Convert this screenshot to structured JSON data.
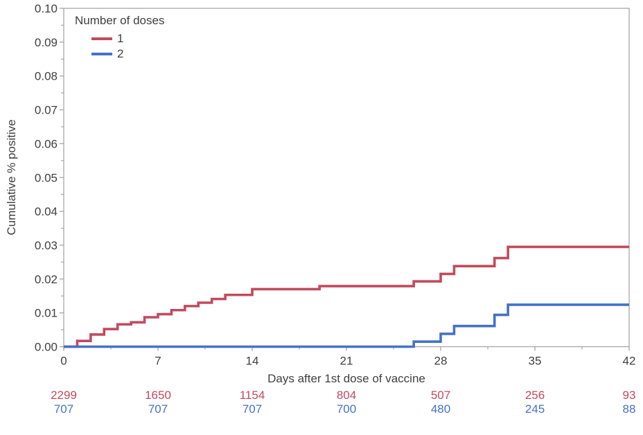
{
  "figure": {
    "background": "#ffffff",
    "text_color": "#3f3f3f",
    "axis_color": "#a6a6a6"
  },
  "chart_data": {
    "type": "line",
    "subtype": "step-function-cumulative-incidence",
    "title": "",
    "xlabel": "Days after 1st dose of vaccine",
    "ylabel": "Cumulative % positive",
    "xlim": [
      0,
      42
    ],
    "ylim": [
      0,
      0.1
    ],
    "grid": false,
    "x_major_ticks": [
      0,
      7,
      14,
      21,
      28,
      35,
      42
    ],
    "x_tick_labels": [
      "0",
      "7",
      "14",
      "21",
      "28",
      "35",
      "42"
    ],
    "x_minor_ticks": [
      3.5,
      10.5,
      17.5,
      24.5,
      31.5,
      38.5
    ],
    "y_major_ticks": [
      0,
      0.01,
      0.02,
      0.03,
      0.04,
      0.05,
      0.06,
      0.07,
      0.08,
      0.09,
      0.1
    ],
    "y_tick_labels": [
      "0.00",
      "0.01",
      "0.02",
      "0.03",
      "0.04",
      "0.05",
      "0.06",
      "0.07",
      "0.08",
      "0.09",
      "0.10"
    ],
    "y_minor_ticks": [
      0.005,
      0.015,
      0.025,
      0.035,
      0.045,
      0.055,
      0.065,
      0.075,
      0.085,
      0.095
    ],
    "legend": {
      "title": "Number of doses",
      "position": "top-left-inside",
      "entries": [
        {
          "label": "1",
          "color": "#c24a5e"
        },
        {
          "label": "2",
          "color": "#4472c8"
        }
      ]
    },
    "series": [
      {
        "name": "1",
        "color": "#c24a5e",
        "end_x": 42,
        "steps": [
          [
            0,
            0
          ],
          [
            1,
            0.0017
          ],
          [
            2,
            0.0036
          ],
          [
            3,
            0.0052
          ],
          [
            4,
            0.0066
          ],
          [
            5,
            0.0072
          ],
          [
            6,
            0.0087
          ],
          [
            7,
            0.0096
          ],
          [
            8,
            0.0108
          ],
          [
            9,
            0.012
          ],
          [
            10,
            0.013
          ],
          [
            11,
            0.0141
          ],
          [
            12,
            0.0153
          ],
          [
            14,
            0.017
          ],
          [
            19,
            0.0179
          ],
          [
            26,
            0.0193
          ],
          [
            28,
            0.0215
          ],
          [
            29,
            0.0238
          ],
          [
            32,
            0.0262
          ],
          [
            33,
            0.0295
          ]
        ]
      },
      {
        "name": "2",
        "color": "#4472c8",
        "end_x": 42,
        "steps": [
          [
            0,
            0
          ],
          [
            26,
            0.0015
          ],
          [
            28,
            0.0038
          ],
          [
            29,
            0.0061
          ],
          [
            32,
            0.0094
          ],
          [
            33,
            0.0124
          ]
        ]
      }
    ],
    "at_risk_table": {
      "times": [
        0,
        7,
        14,
        21,
        28,
        35,
        42
      ],
      "rows": [
        {
          "series": "1",
          "color": "#c24a5e",
          "values": [
            2299,
            1650,
            1154,
            804,
            507,
            256,
            93
          ]
        },
        {
          "series": "2",
          "color": "#4472c8",
          "values": [
            707,
            707,
            707,
            700,
            480,
            245,
            88
          ]
        }
      ]
    }
  }
}
